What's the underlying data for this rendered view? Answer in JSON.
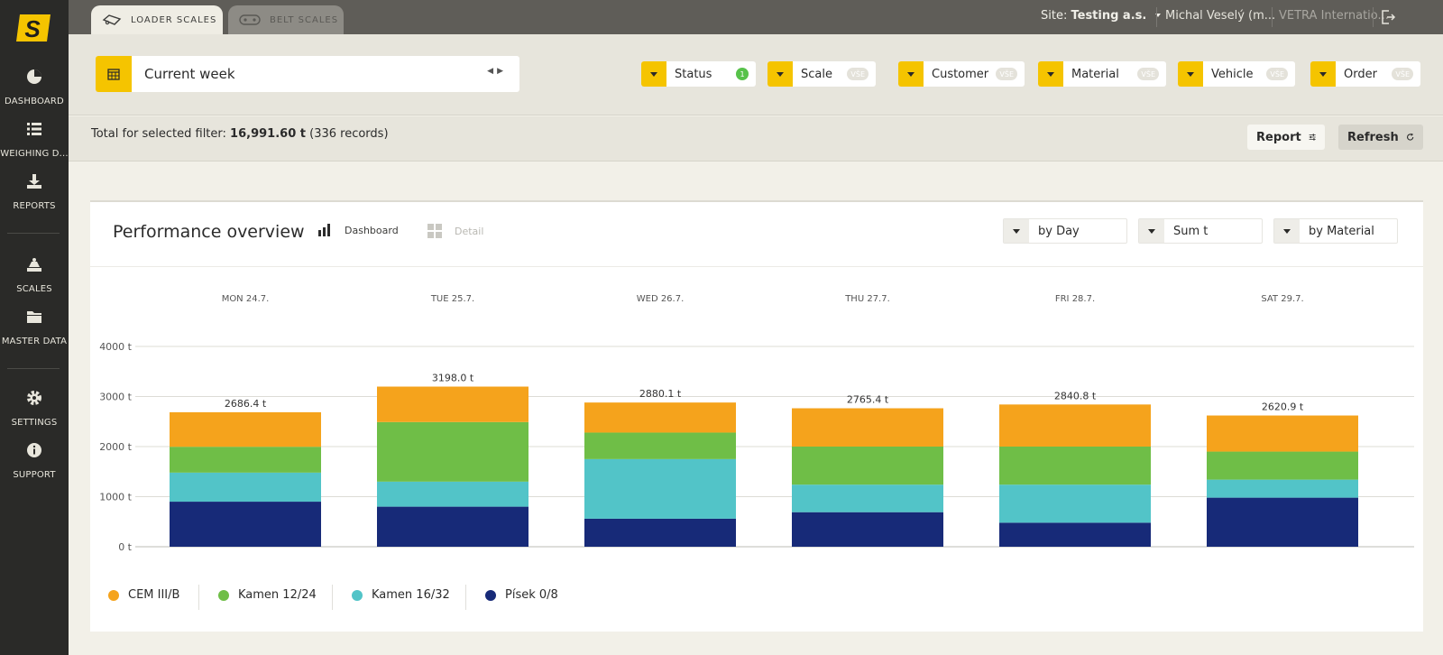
{
  "sidebar": {
    "logo_letter": "S",
    "items": [
      {
        "label": "DASHBOARD",
        "icon": "pie-chart-icon"
      },
      {
        "label": "WEIGHING D...",
        "icon": "list-icon"
      },
      {
        "label": "REPORTS",
        "icon": "download-icon"
      },
      {
        "label": "SCALES",
        "icon": "scale-icon"
      },
      {
        "label": "MASTER DATA",
        "icon": "folder-icon"
      },
      {
        "label": "SETTINGS",
        "icon": "gear-icon"
      },
      {
        "label": "SUPPORT",
        "icon": "info-icon"
      }
    ]
  },
  "topbar": {
    "tabs": [
      {
        "label": "LOADER SCALES",
        "icon": "loader-icon",
        "active": true
      },
      {
        "label": "BELT SCALES",
        "icon": "belt-icon",
        "active": false
      }
    ],
    "site_prefix": "Site:",
    "site_name": "Testing a.s.",
    "user": "Michal Veselý (m...",
    "company": "VETRA Internatio...",
    "logout_icon": "logout-icon"
  },
  "filters": {
    "period": "Current week",
    "calendar_icon": "calendar-icon",
    "chips": [
      {
        "label": "Status",
        "badge": "1",
        "active": true
      },
      {
        "label": "Scale",
        "badge": "VŠE",
        "active": false
      },
      {
        "label": "Customer",
        "badge": "VŠE",
        "active": false
      },
      {
        "label": "Material",
        "badge": "VŠE",
        "active": false
      },
      {
        "label": "Vehicle",
        "badge": "VŠE",
        "active": false
      },
      {
        "label": "Order",
        "badge": "VŠE",
        "active": false
      }
    ]
  },
  "summary": {
    "prefix": "Total for selected filter:",
    "total": "16,991.60 t",
    "records": "(336 records)",
    "report_label": "Report",
    "refresh_label": "Refresh"
  },
  "card": {
    "title": "Performance overview",
    "view_dashboard": "Dashboard",
    "view_detail": "Detail",
    "group_by": "by Day",
    "metric": "Sum t",
    "split_by": "by Material"
  },
  "colors": {
    "accent": "#f5c400",
    "sidebar": "#2a2a28",
    "CEM III/B": "#f5a31c",
    "Kamen 12/24": "#6fbe47",
    "Kamen 16/32": "#52c4c8",
    "Písek 0/8": "#172a78"
  },
  "chart_data": {
    "type": "bar",
    "stacked": true,
    "categories": [
      "MON 24.7.",
      "TUE 25.7.",
      "WED 26.7.",
      "THU 27.7.",
      "FRI 28.7.",
      "SAT 29.7."
    ],
    "totals": [
      "2686.4 t",
      "3198.0 t",
      "2880.1 t",
      "2765.4 t",
      "2840.8 t",
      "2620.9 t"
    ],
    "series": [
      {
        "name": "Písek 0/8",
        "color": "#172a78",
        "values": [
          900,
          800,
          560,
          690,
          480,
          980
        ]
      },
      {
        "name": "Kamen 16/32",
        "color": "#52c4c8",
        "values": [
          580,
          500,
          1190,
          550,
          760,
          360
        ]
      },
      {
        "name": "Kamen 12/24",
        "color": "#6fbe47",
        "values": [
          516,
          1190,
          530,
          760,
          760,
          560
        ]
      },
      {
        "name": "CEM III/B",
        "color": "#f5a31c",
        "values": [
          690.4,
          708,
          600.1,
          765.4,
          840.8,
          720.9
        ]
      }
    ],
    "yticks": [
      "0 t",
      "1000 t",
      "2000 t",
      "3000 t",
      "4000 t"
    ],
    "ylim": [
      0,
      4000
    ],
    "grid": true,
    "legend_position": "bottom-left"
  }
}
